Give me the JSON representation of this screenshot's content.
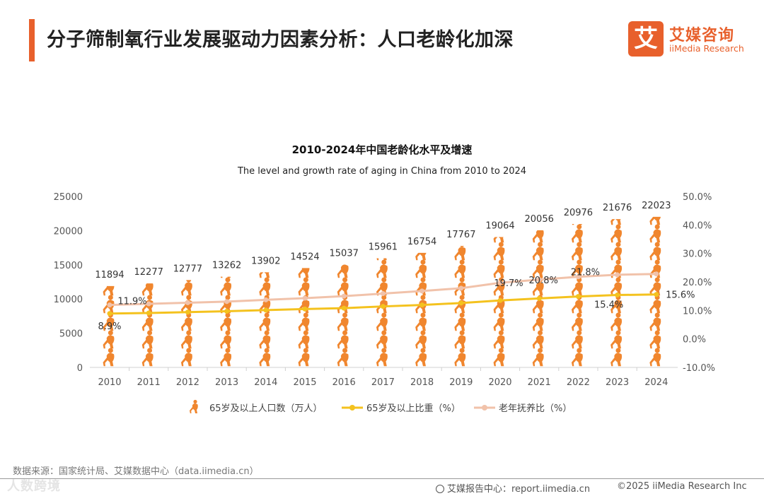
{
  "page": {
    "title": "分子筛制氧行业发展驱动力因素分析：人口老龄化加深",
    "logo_cn": "艾媒咨询",
    "logo_en": "iiMedia Research",
    "logo_char": "艾",
    "source": "数据来源：国家统计局、艾媒数据中心（data.iimedia.cn）",
    "watermark": "人数跨境",
    "footer_report": "艾媒报告中心：report.iimedia.cn",
    "footer_copyright": "©2025  iiMedia Research  Inc"
  },
  "colors": {
    "accent": "#e8602c",
    "bar": "#f0862e",
    "share_line": "#f4c21e",
    "dependency_line": "#f1c2aa"
  },
  "chart_data": {
    "type": "bar+line",
    "title": "2010-2024年中国老龄化水平及增速",
    "subtitle": "The level and growth rate of aging in China from 2010 to 2024",
    "categories": [
      "2010",
      "2011",
      "2012",
      "2013",
      "2014",
      "2015",
      "2016",
      "2017",
      "2018",
      "2019",
      "2020",
      "2021",
      "2022",
      "2023",
      "2024"
    ],
    "left_axis": {
      "min": 0,
      "max": 25000,
      "ticks": [
        "0",
        "5000",
        "10000",
        "15000",
        "20000",
        "25000"
      ]
    },
    "right_axis": {
      "min": -10,
      "max": 50,
      "ticks": [
        "-10.0%",
        "0.0%",
        "10.0%",
        "20.0%",
        "30.0%",
        "40.0%",
        "50.0%"
      ]
    },
    "series": [
      {
        "name": "65岁及以上人口数（万人）",
        "type": "pictorial-bar",
        "axis": "left",
        "values": [
          11894,
          12277,
          12777,
          13262,
          13902,
          14524,
          15037,
          15961,
          16754,
          17767,
          19064,
          20056,
          20976,
          21676,
          22023
        ],
        "labels": [
          "11894",
          "12277",
          "12777",
          "13262",
          "13902",
          "14524",
          "15037",
          "15961",
          "16754",
          "17767",
          "19064",
          "20056",
          "20976",
          "21676",
          "22023"
        ]
      },
      {
        "name": "65岁及以上比重（%）",
        "type": "line",
        "axis": "right",
        "values": [
          8.9,
          9.1,
          9.4,
          9.7,
          10.1,
          10.5,
          10.8,
          11.4,
          11.9,
          12.6,
          13.5,
          14.2,
          14.9,
          15.4,
          15.6
        ],
        "labels": {
          "0": "8.9%",
          "13": "15.4%",
          "14": "15.6%"
        }
      },
      {
        "name": "老年抚养比（%）",
        "type": "line",
        "axis": "right",
        "values": [
          11.9,
          12.3,
          12.7,
          13.1,
          13.7,
          14.3,
          15.0,
          15.9,
          16.8,
          17.8,
          19.7,
          20.8,
          21.8,
          22.5,
          22.8
        ],
        "labels": {
          "0": "11.9%",
          "10": "19.7%",
          "11": "20.8%",
          "12": "21.8%"
        }
      }
    ]
  }
}
